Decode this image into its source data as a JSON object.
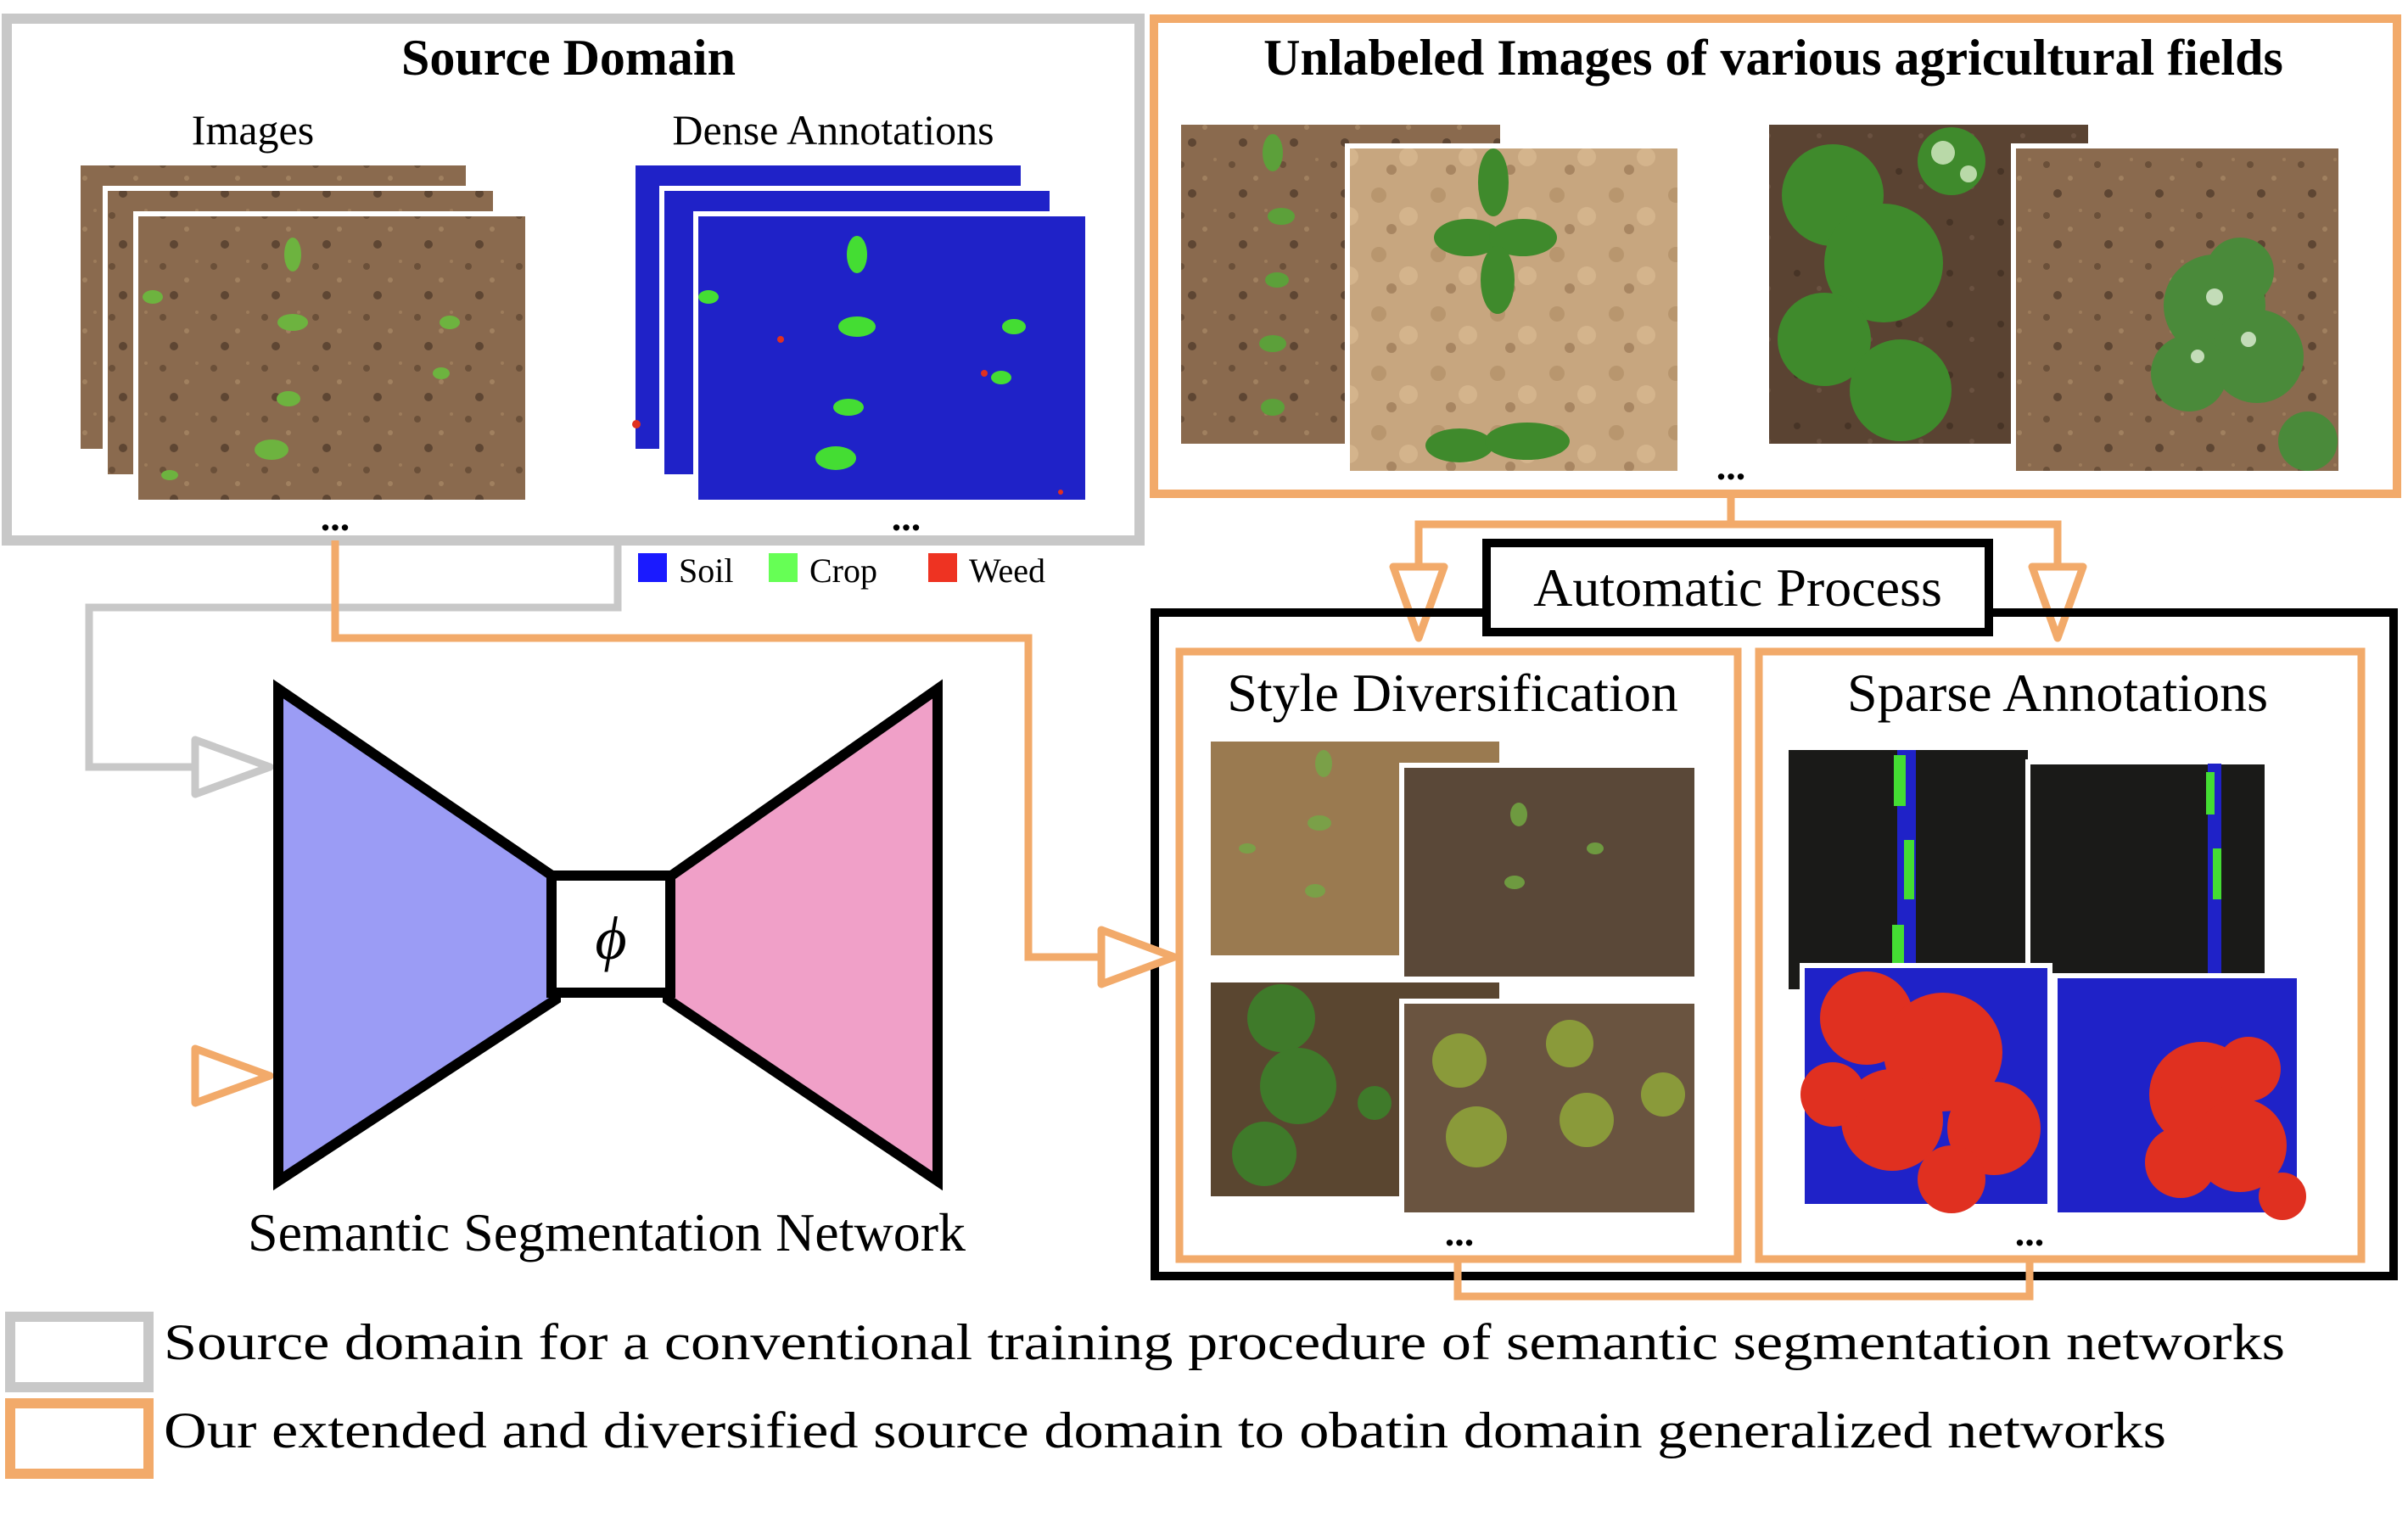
{
  "source_domain": {
    "title": "Source Domain",
    "images_label": "Images",
    "annotations_label": "Dense Annotations",
    "images_ellipsis": "...",
    "annotations_ellipsis": "..."
  },
  "class_legend": [
    {
      "label": "Soil",
      "color": "#1a1aff"
    },
    {
      "label": "Crop",
      "color": "#66ff55"
    },
    {
      "label": "Weed",
      "color": "#ee3322"
    }
  ],
  "unlabeled": {
    "title": "Unlabeled Images of various agricultural fields",
    "ellipsis": "..."
  },
  "automatic_process": {
    "label": "Automatic Process",
    "style_diversification": "Style Diversification",
    "sparse_annotations": "Sparse Annotations",
    "style_ellipsis": "...",
    "sparse_ellipsis": "..."
  },
  "network": {
    "label": "Semantic Segmentation Network",
    "bottleneck_symbol": "ϕ",
    "encoder_color": "#9b9cf5",
    "decoder_color": "#f0a0c8"
  },
  "footer_legend": [
    {
      "label": "Source domain for a conventional training procedure of semantic segmentation networks",
      "color": "#c8c8c8"
    },
    {
      "label": "Our extended and diversified source domain to obatin domain generalized networks",
      "color": "#f2aa6a"
    }
  ],
  "colors": {
    "gray_frame": "#c8c8c8",
    "orange_frame": "#f2aa6a",
    "soil": "#8a6a4e",
    "soil_dark": "#5a4332",
    "soil_light": "#c7a67f",
    "plant": "#4f9a3a",
    "mask_blue": "#1f22c8",
    "mask_green": "#44dd33",
    "mask_red": "#e03020",
    "dark_bg": "#1a1a18"
  }
}
